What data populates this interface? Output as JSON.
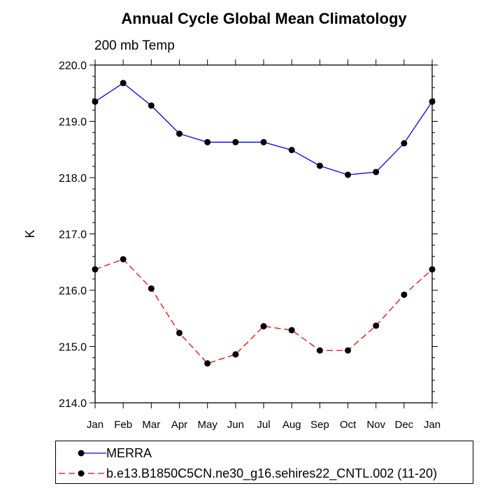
{
  "chart_data": {
    "type": "line",
    "title": "Annual Cycle Global Mean Climatology",
    "subtitle": "200 mb Temp",
    "xlabel": "",
    "ylabel": "K",
    "categories": [
      "Jan",
      "Feb",
      "Mar",
      "Apr",
      "May",
      "Jun",
      "Jul",
      "Aug",
      "Sep",
      "Oct",
      "Nov",
      "Dec",
      "Jan"
    ],
    "ylim": [
      214.0,
      220.0
    ],
    "yticks": [
      "214.0",
      "215.0",
      "216.0",
      "217.0",
      "218.0",
      "219.0",
      "220.0"
    ],
    "grid": false,
    "legend_position": "bottom",
    "series": [
      {
        "name": "MERRA",
        "color": "#0000ff",
        "style": "solid",
        "values": [
          219.35,
          219.68,
          219.28,
          218.78,
          218.63,
          218.63,
          218.63,
          218.49,
          218.21,
          218.05,
          218.1,
          218.61,
          219.35
        ]
      },
      {
        "name": "b.e13.B1850C5CN.ne30_g16.sehires22_CNTL.002 (11-20)",
        "color": "#ff0000",
        "style": "dashed",
        "values": [
          216.37,
          216.55,
          216.03,
          215.24,
          214.7,
          214.86,
          215.36,
          215.29,
          214.93,
          214.93,
          215.37,
          215.92,
          216.37
        ]
      }
    ]
  }
}
